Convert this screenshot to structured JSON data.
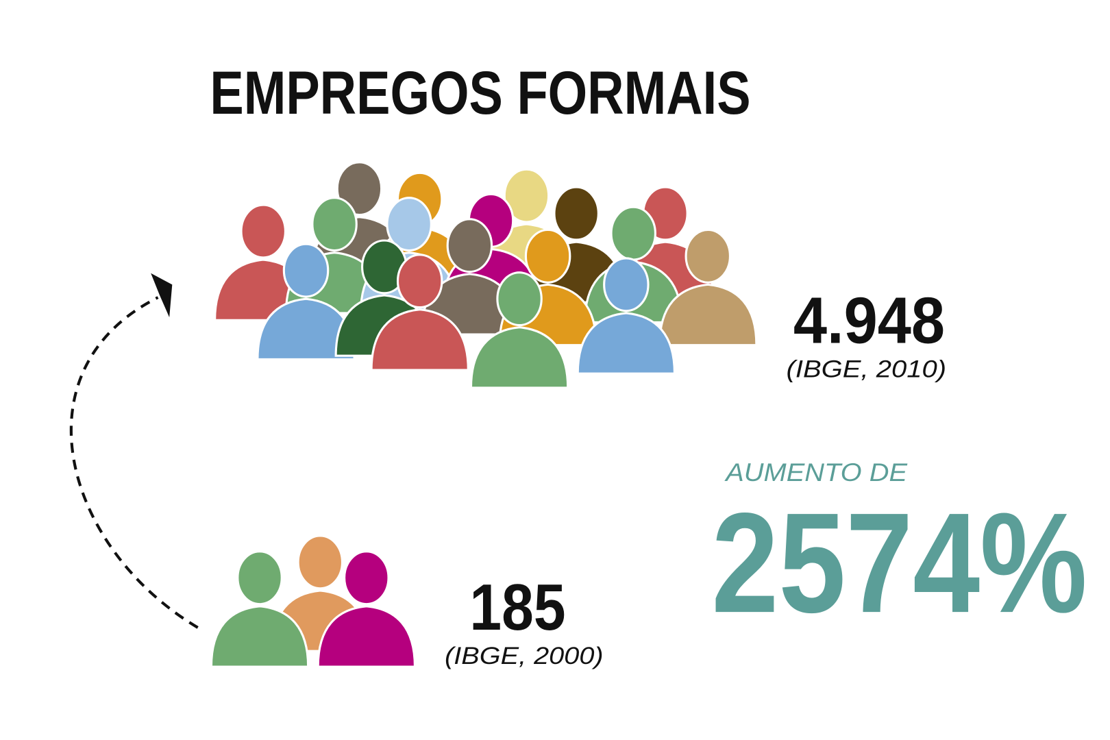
{
  "header": {
    "title": "EMPREGOS FORMAIS"
  },
  "current": {
    "value": "4.948",
    "source": "(IBGE, 2010)"
  },
  "previous": {
    "value": "185",
    "source": "(IBGE, 2000)"
  },
  "increase": {
    "label": "AUMENTO DE",
    "value": "2574%"
  }
}
